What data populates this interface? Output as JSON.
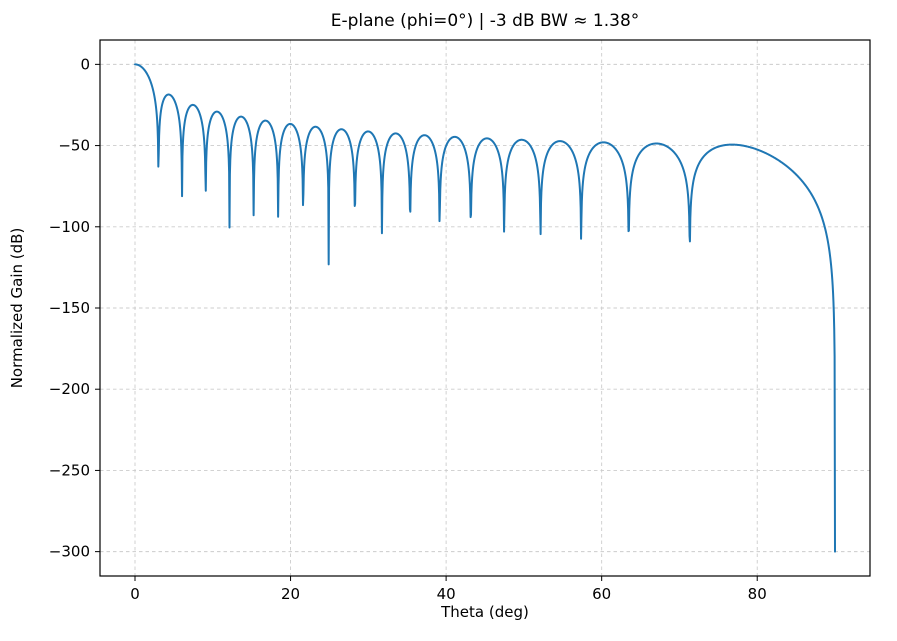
{
  "figure": {
    "background_color": "#ffffff",
    "plot_background_color": "#ffffff",
    "spine_color": "#000000",
    "grid_color": "#cccccc",
    "accent_color": "#1f77b4"
  },
  "chart_data": {
    "type": "line",
    "title": "E-plane (phi=0°)  |  -3 dB BW ≈ 1.38°",
    "xlabel": "Theta (deg)",
    "ylabel": "Normalized Gain (dB)",
    "xlim": [
      -4.5,
      94.5
    ],
    "ylim": [
      -315,
      15
    ],
    "x_ticks": {
      "values": [
        0,
        20,
        40,
        60,
        80
      ],
      "labels": [
        "0",
        "20",
        "40",
        "60",
        "80"
      ]
    },
    "y_ticks": {
      "values": [
        0,
        -50,
        -100,
        -150,
        -200,
        -250,
        -300
      ],
      "labels": [
        "0",
        "−50",
        "−100",
        "−150",
        "−200",
        "−250",
        "−300"
      ]
    },
    "grid": {
      "on": true,
      "style": "dashed",
      "color": "#cccccc"
    },
    "legend": {
      "visible": false
    },
    "series": [
      {
        "name": "normalized-gain-e-plane",
        "color": "#1f77b4",
        "line_width": 2,
        "model": {
          "description": "Uniform aperture array factor: gain_dB = db_scale * log10(|sin(u)/u|), u = pi * L_over_lambda * sin(theta), clipped at clip_db",
          "function": "sinc_power_db",
          "L_over_lambda": 19,
          "db_scale": 28,
          "clip_db": -300
        },
        "sampling": {
          "theta_start_deg": 0,
          "theta_end_deg": 90,
          "step_deg": 0.05
        },
        "main_lobe": {
          "theta_deg": 0,
          "gain_db": 0
        },
        "beamwidth_minus3db_deg": 1.38,
        "null_angles_deg": [
          3.02,
          6.05,
          9.09,
          12.16,
          15.26,
          18.41,
          21.61,
          24.9,
          28.25,
          31.76,
          35.37,
          39.16,
          43.16,
          47.47,
          52.14,
          57.36,
          63.47,
          71.35,
          90.0
        ],
        "sidelobe_peaks": {
          "theta_deg": [
            4.53,
            7.56,
            10.62,
            13.7,
            16.83,
            20.01,
            23.26,
            26.58,
            30.0,
            33.55,
            37.25,
            41.15,
            45.28,
            49.73,
            54.67,
            60.27,
            67.08,
            76.83
          ],
          "gain_db": [
            -19,
            -25,
            -29,
            -32,
            -35,
            -37,
            -38.5,
            -40,
            -41.5,
            -43,
            -44,
            -45,
            -46,
            -47,
            -47.5,
            -48.5,
            -49,
            -49.5
          ]
        },
        "floor_db": -300,
        "end_behavior": "steep vertical drop to -300 dB at theta = 90°"
      }
    ]
  }
}
